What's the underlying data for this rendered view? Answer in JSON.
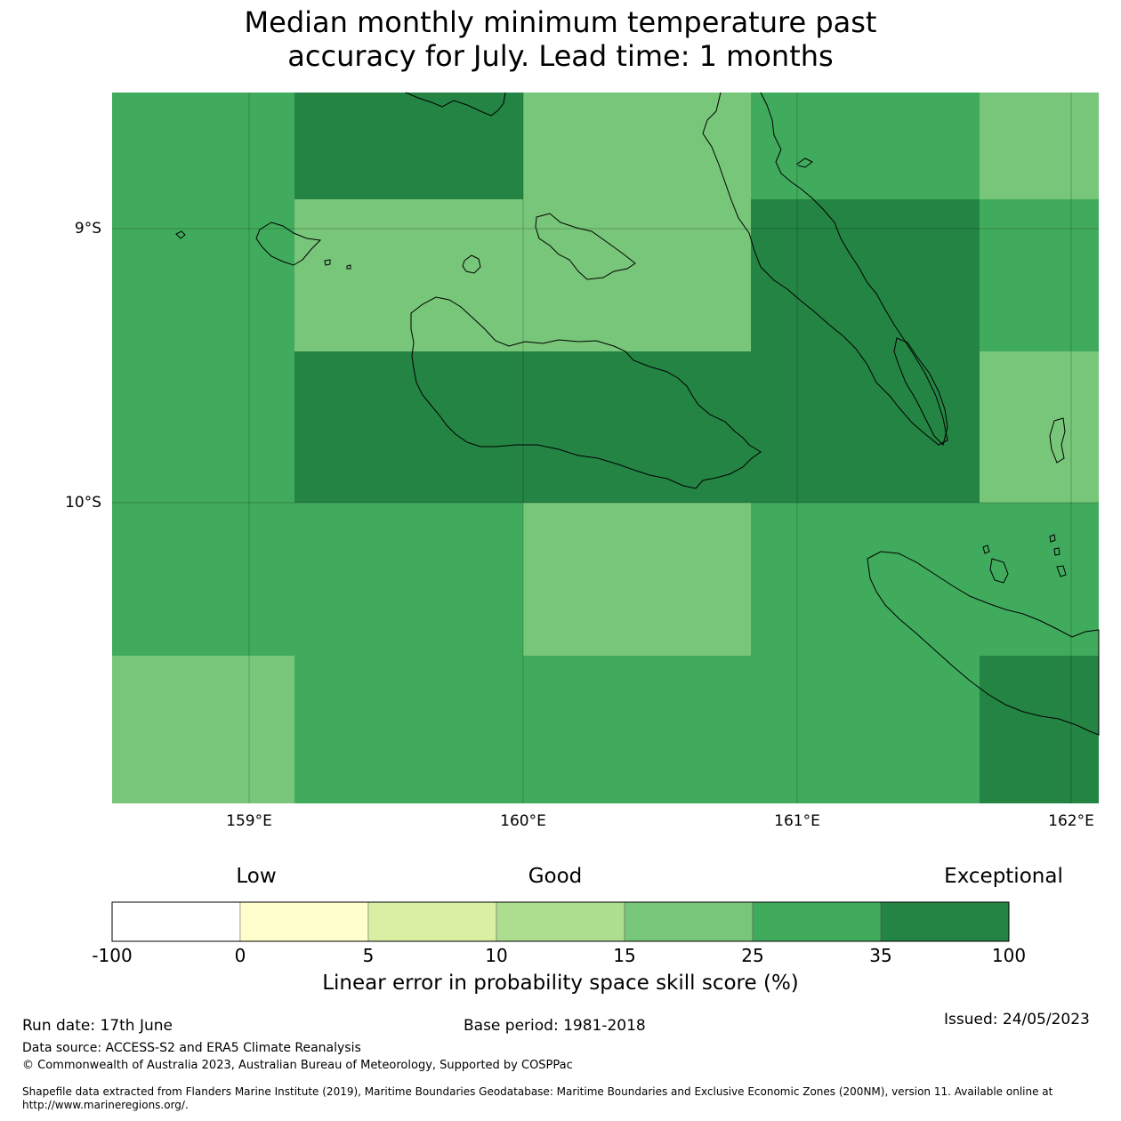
{
  "title_lines": [
    "Median monthly minimum temperature past",
    "accuracy for July. Lead time: 1 months"
  ],
  "map": {
    "lat_labels": [
      "9°S",
      "10°S"
    ],
    "lon_labels": [
      "159°E",
      "160°E",
      "161°E",
      "162°E"
    ],
    "grid_cells": [
      {
        "row": 0,
        "col": 0,
        "level": 5
      },
      {
        "row": 0,
        "col": 1,
        "level": 6
      },
      {
        "row": 0,
        "col": 2,
        "level": 6
      },
      {
        "row": 0,
        "col": 3,
        "level": 4
      },
      {
        "row": 0,
        "col": 4,
        "level": 5
      },
      {
        "row": 0,
        "col": 5,
        "level": 4
      },
      {
        "row": 1,
        "col": 0,
        "level": 5
      },
      {
        "row": 1,
        "col": 1,
        "level": 4
      },
      {
        "row": 1,
        "col": 2,
        "level": 4
      },
      {
        "row": 1,
        "col": 3,
        "level": 6
      },
      {
        "row": 1,
        "col": 4,
        "level": 5
      },
      {
        "row": 1,
        "col": 5,
        "level": 4
      },
      {
        "row": 2,
        "col": 0,
        "level": 5
      },
      {
        "row": 2,
        "col": 1,
        "level": 5
      },
      {
        "row": 2,
        "col": 2,
        "level": 4
      },
      {
        "row": 2,
        "col": 3,
        "level": 5
      },
      {
        "row": 2,
        "col": 4,
        "level": 6
      },
      {
        "row": 2,
        "col": 5,
        "level": 5
      }
    ]
  },
  "legend": {
    "categories": [
      "Low",
      "Good",
      "Exceptional"
    ],
    "bins": [
      {
        "from": "-100",
        "to": "0",
        "color": "#ffffff"
      },
      {
        "from": "0",
        "to": "5",
        "color": "#ffffcc"
      },
      {
        "from": "5",
        "to": "10",
        "color": "#d9f0a3"
      },
      {
        "from": "10",
        "to": "15",
        "color": "#addd8e"
      },
      {
        "from": "15",
        "to": "25",
        "color": "#78c679"
      },
      {
        "from": "25",
        "to": "35",
        "color": "#41ab5d"
      },
      {
        "from": "35",
        "to": "100",
        "color": "#238443"
      }
    ],
    "tick_labels": [
      "-100",
      "0",
      "5",
      "10",
      "15",
      "25",
      "35",
      "100"
    ],
    "label": "Linear error in probability space skill score (%)"
  },
  "footer": {
    "run_date": "Run date: 17th June",
    "base_period": "Base period: 1981-2018",
    "issued": "Issued: 24/05/2023",
    "data_source": "Data source: ACCESS-S2 and ERA5 Climate Reanalysis",
    "copyright": "© Commonwealth of Australia 2023, Australian Bureau of Meteorology, Supported by COSPPac",
    "shapefile_note": "Shapefile data extracted from Flanders Marine Institute (2019), Maritime Boundaries Geodatabase: Maritime Boundaries and Exclusive Economic Zones (200NM), version 11. Available online at http://www.marineregions.org/."
  }
}
